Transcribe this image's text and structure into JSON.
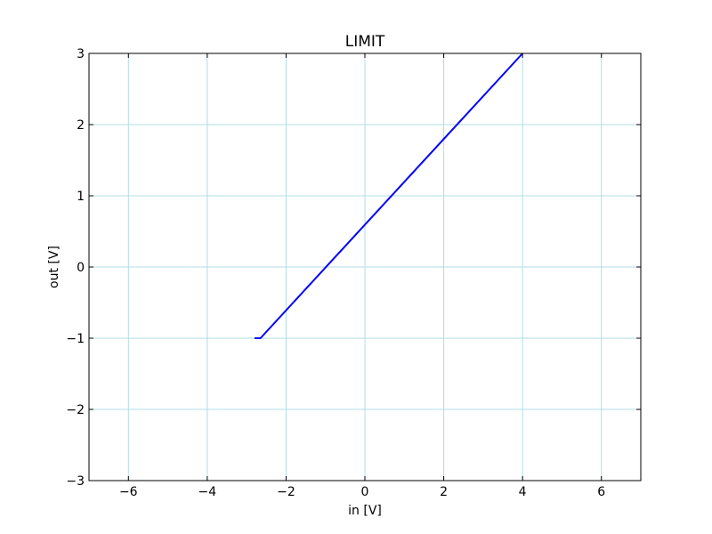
{
  "chart_data": {
    "type": "line",
    "title": "LIMIT",
    "xlabel": "in [V]",
    "ylabel": "out [V]",
    "xlim": [
      -7,
      7
    ],
    "ylim": [
      -3,
      3
    ],
    "xticks": [
      -6,
      -4,
      -2,
      0,
      2,
      4,
      6
    ],
    "xtick_labels": [
      "−6",
      "−4",
      "−2",
      "0",
      "2",
      "4",
      "6"
    ],
    "yticks": [
      -3,
      -2,
      -1,
      0,
      1,
      2,
      3
    ],
    "ytick_labels": [
      "−3",
      "−2",
      "−1",
      "0",
      "1",
      "2",
      "3"
    ],
    "grid": true,
    "series": [
      {
        "x": [
          -2.8,
          -2.65,
          4.0
        ],
        "y": [
          -1.0,
          -1.0,
          3.0
        ],
        "color": "#0000ff"
      }
    ],
    "colors": {
      "grid": "#b0dde3",
      "frame": "#000000"
    }
  }
}
